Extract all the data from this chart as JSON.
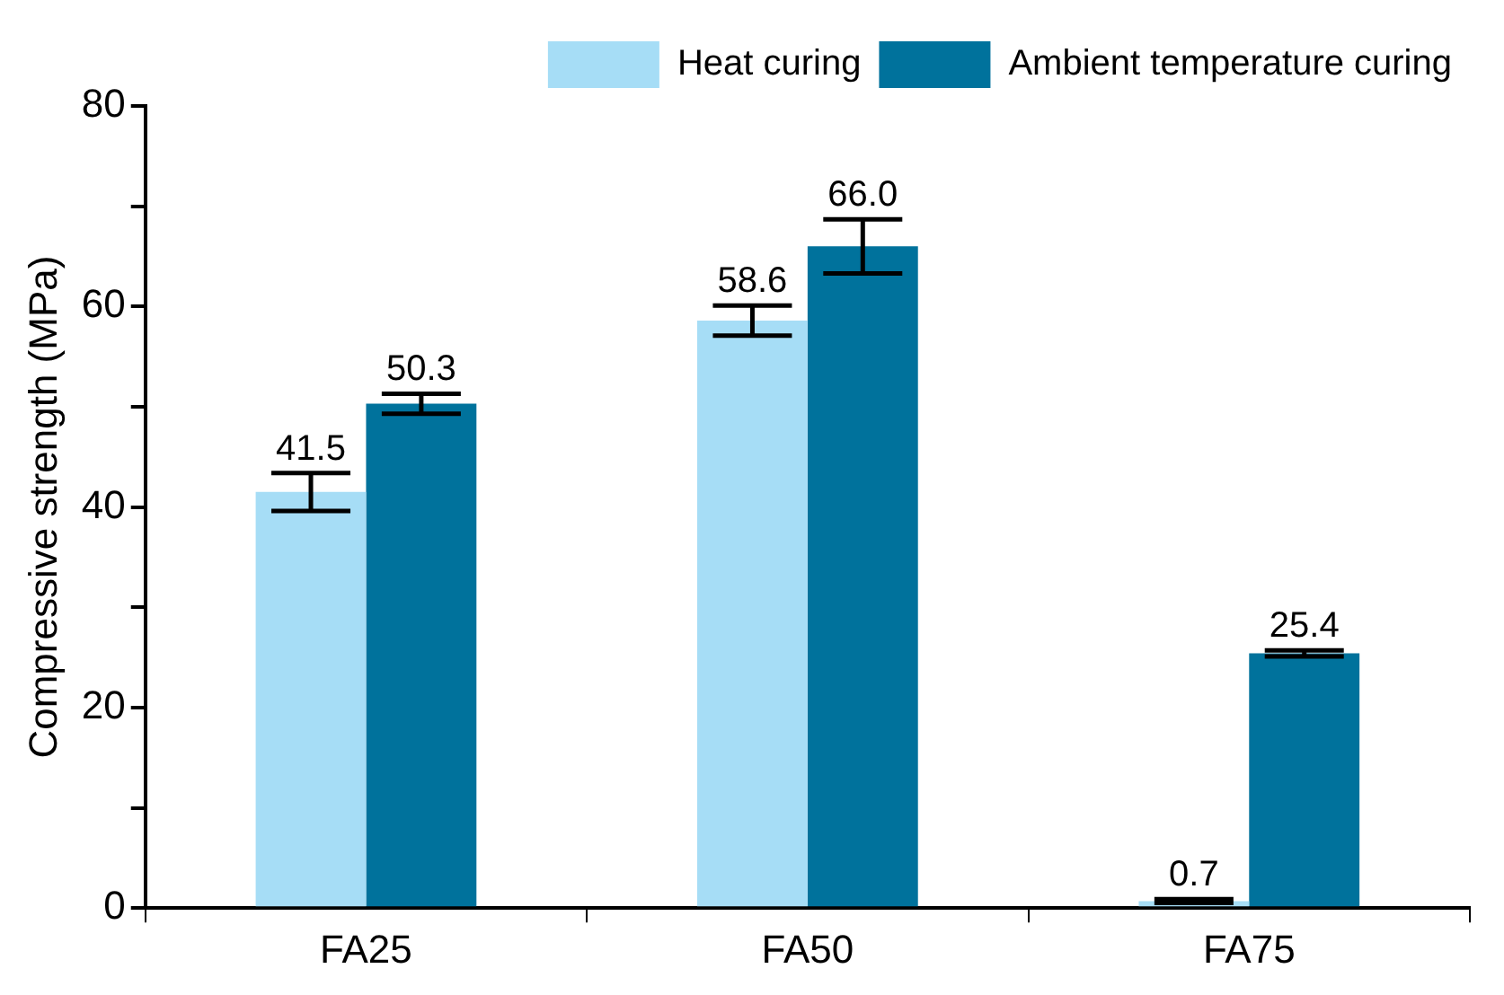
{
  "chart_data": {
    "type": "bar",
    "ylabel": "Compressive strength (MPa)",
    "categories": [
      "FA25",
      "FA50",
      "FA75"
    ],
    "series": [
      {
        "name": "Heat curing",
        "color": "#a6ddf6",
        "values": [
          41.5,
          58.6,
          0.7
        ],
        "value_labels": [
          "41.5",
          "58.6",
          "0.7"
        ],
        "errors": [
          1.9,
          1.5,
          0.2
        ]
      },
      {
        "name": "Ambient temperature curing",
        "color": "#00729c",
        "values": [
          50.3,
          66.0,
          25.4
        ],
        "value_labels": [
          "50.3",
          "66.0",
          "25.4"
        ],
        "errors": [
          1.0,
          2.7,
          0.3
        ]
      }
    ],
    "ylim": [
      0,
      80
    ],
    "yticks": [
      0,
      {
        "value": 10,
        "label": null
      },
      20,
      {
        "value": 30,
        "label": null
      },
      40,
      {
        "value": 50,
        "label": null
      },
      60,
      {
        "value": 70,
        "label": null
      },
      80
    ],
    "grid": false,
    "legend": "top right"
  }
}
